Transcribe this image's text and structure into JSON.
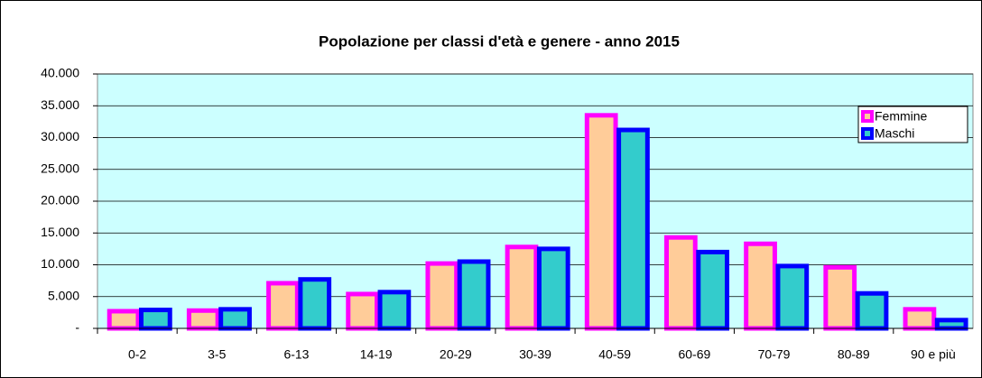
{
  "chart_data": {
    "type": "bar",
    "title": "Popolazione per classi d'età e genere - anno 2015",
    "categories": [
      "0-2",
      "3-5",
      "6-13",
      "14-19",
      "20-29",
      "30-39",
      "40-59",
      "60-69",
      "70-79",
      "80-89",
      "90 e più"
    ],
    "series": [
      {
        "name": "Femmine",
        "color": "#ffcc99",
        "edgecolor": "#ff00ff",
        "values": [
          2700,
          2800,
          7100,
          5400,
          10200,
          12800,
          33500,
          14300,
          13300,
          9600,
          3000
        ]
      },
      {
        "name": "Maschi",
        "color": "#33cccc",
        "edgecolor": "#0000ff",
        "values": [
          2900,
          3000,
          7700,
          5700,
          10500,
          12500,
          31200,
          12000,
          9800,
          5500,
          1300
        ]
      }
    ],
    "ylim": [
      0,
      40000
    ],
    "yticks": [
      {
        "value": 0,
        "label": "-"
      },
      {
        "value": 5000,
        "label": "5.000"
      },
      {
        "value": 10000,
        "label": "10.000"
      },
      {
        "value": 15000,
        "label": "15.000"
      },
      {
        "value": 20000,
        "label": "20.000"
      },
      {
        "value": 25000,
        "label": "25.000"
      },
      {
        "value": 30000,
        "label": "30.000"
      },
      {
        "value": 35000,
        "label": "35.000"
      },
      {
        "value": 40000,
        "label": "40.000"
      }
    ],
    "grid": true,
    "background": "#ccffff",
    "legend": "upper right"
  }
}
